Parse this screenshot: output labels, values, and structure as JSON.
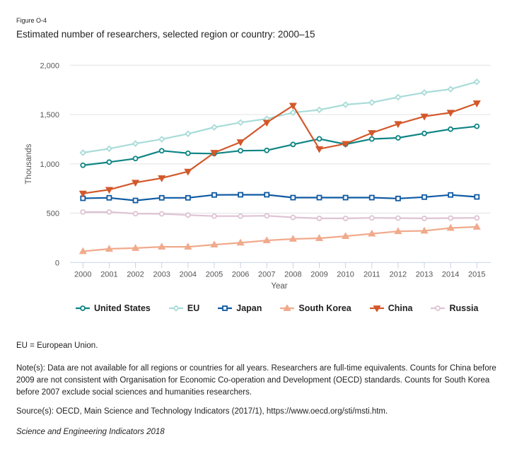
{
  "figure_label": "Figure O-4",
  "title": "Estimated number of researchers, selected region or country: 2000–15",
  "chart_data": {
    "type": "line",
    "title": "Estimated number of researchers, selected region or country: 2000–15",
    "xlabel": "Year",
    "ylabel": "Thousands",
    "ylim": [
      0,
      2000
    ],
    "yticks": [
      0,
      500,
      1000,
      1500,
      2000
    ],
    "ytick_labels": [
      "0",
      "500",
      "1,000",
      "1,500",
      "2,000"
    ],
    "x": [
      2000,
      2001,
      2002,
      2003,
      2004,
      2005,
      2006,
      2007,
      2008,
      2009,
      2010,
      2011,
      2012,
      2013,
      2014,
      2015
    ],
    "xtick_labels": [
      "2000",
      "2001",
      "2002",
      "2003",
      "2004",
      "2005",
      "2006",
      "2007",
      "2008",
      "2009",
      "2010",
      "2011",
      "2012",
      "2013",
      "2014",
      "2015"
    ],
    "grid": true,
    "legend_position": "bottom",
    "series": [
      {
        "name": "United States",
        "color": "#0e8484",
        "marker": "circle",
        "values": [
          986,
          1018,
          1054,
          1133,
          1108,
          1104,
          1133,
          1137,
          1197,
          1254,
          1199,
          1252,
          1264,
          1309,
          1352,
          1381
        ]
      },
      {
        "name": "EU",
        "color": "#a8dcd8",
        "marker": "diamond",
        "values": [
          1113,
          1154,
          1206,
          1250,
          1305,
          1371,
          1419,
          1457,
          1520,
          1548,
          1601,
          1622,
          1677,
          1723,
          1758,
          1832
        ]
      },
      {
        "name": "Japan",
        "color": "#0f5aa3",
        "marker": "square",
        "values": [
          651,
          656,
          629,
          656,
          656,
          685,
          687,
          687,
          658,
          658,
          658,
          658,
          649,
          663,
          685,
          665
        ]
      },
      {
        "name": "South Korea",
        "color": "#f0aa8c",
        "marker": "triangle-up",
        "values": [
          113,
          138,
          146,
          159,
          159,
          181,
          200,
          224,
          239,
          246,
          267,
          292,
          316,
          321,
          350,
          361
        ]
      },
      {
        "name": "China",
        "color": "#d2582a",
        "marker": "triangle-down",
        "values": [
          700,
          738,
          810,
          856,
          922,
          1113,
          1221,
          1419,
          1591,
          1151,
          1204,
          1314,
          1405,
          1481,
          1520,
          1615
        ]
      },
      {
        "name": "Russia",
        "color": "#dfc3d3",
        "marker": "circle",
        "values": [
          512,
          512,
          495,
          493,
          481,
          470,
          470,
          474,
          457,
          447,
          447,
          452,
          450,
          447,
          450,
          452
        ]
      }
    ]
  },
  "legend": [
    {
      "label": "United States"
    },
    {
      "label": "EU"
    },
    {
      "label": "Japan"
    },
    {
      "label": "South Korea"
    },
    {
      "label": "China"
    },
    {
      "label": "Russia"
    }
  ],
  "notes": {
    "abbrev": "EU = European Union.",
    "note": "Note(s): Data are not available for all regions or countries for all years. Researchers are full-time equivalents. Counts for China before 2009 are not consistent with Organisation for Economic Co-operation and Development (OECD) standards. Counts for South Korea before 2007 exclude social sciences and humanities researchers.",
    "source": "Source(s): OECD, Main Science and Technology Indicators (2017/1), https://www.oecd.org/sti/msti.htm.",
    "publication": "Science and Engineering Indicators 2018"
  }
}
